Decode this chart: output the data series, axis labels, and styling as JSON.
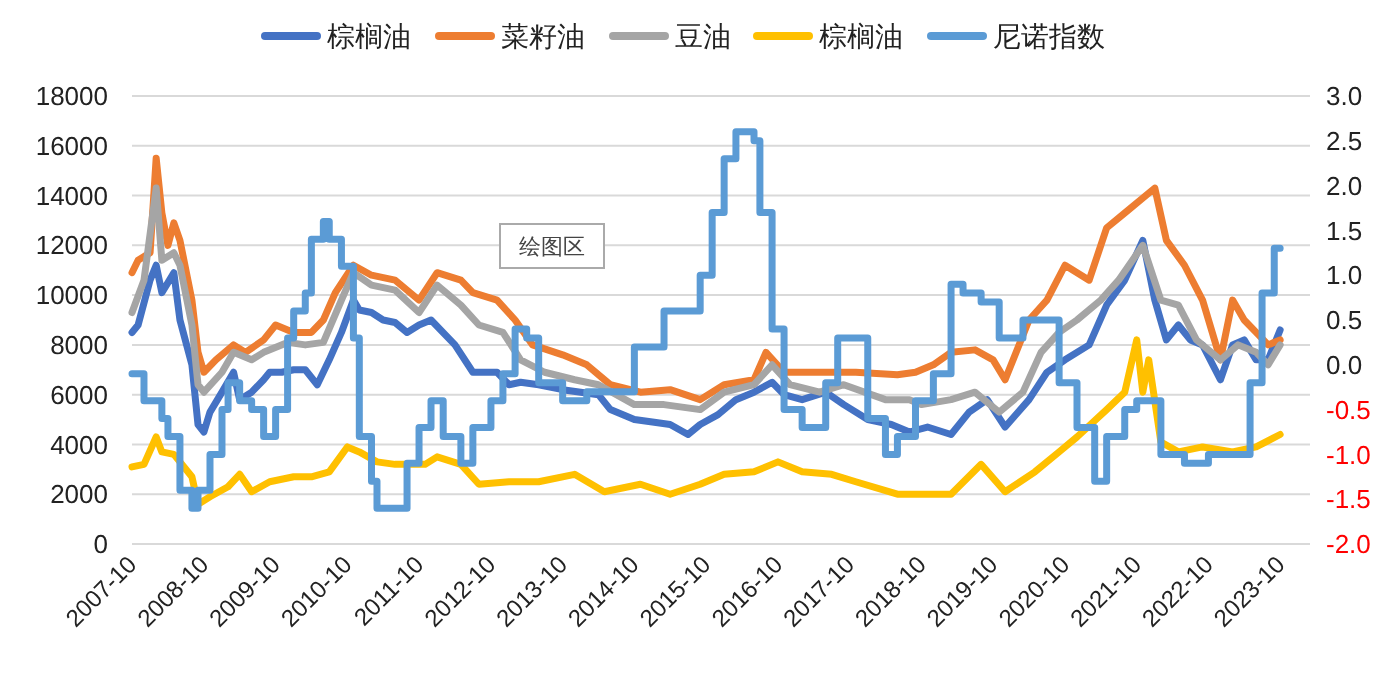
{
  "chart_data": {
    "type": "line",
    "legend": "top",
    "grid": "y",
    "annotations": [
      "绘图区"
    ],
    "xlim": [
      "2007-10",
      "2024-03"
    ],
    "xticks": [
      "2007-10",
      "2008-10",
      "2009-10",
      "2010-10",
      "2011-10",
      "2012-10",
      "2013-10",
      "2014-10",
      "2015-10",
      "2016-10",
      "2017-10",
      "2018-10",
      "2019-10",
      "2020-10",
      "2021-10",
      "2022-10",
      "2023-10"
    ],
    "ylim": [
      0,
      18000
    ],
    "yticks": [
      0,
      2000,
      4000,
      6000,
      8000,
      10000,
      12000,
      14000,
      16000,
      18000
    ],
    "y2lim": [
      -2,
      3
    ],
    "y2ticks": [
      {
        "value": -2,
        "label": "-2.0"
      },
      {
        "value": -1.5,
        "label": "-1.5"
      },
      {
        "value": -1,
        "label": "-1.0"
      },
      {
        "value": -0.5,
        "label": "-0.5"
      },
      {
        "value": 0,
        "label": "0.0"
      },
      {
        "value": 0.5,
        "label": "0.5"
      },
      {
        "value": 1,
        "label": "1.0"
      },
      {
        "value": 1.5,
        "label": "1.5"
      },
      {
        "value": 2,
        "label": "2.0"
      },
      {
        "value": 2.5,
        "label": "2.5"
      },
      {
        "value": 3,
        "label": "3.0"
      }
    ],
    "series": [
      {
        "name": "棕榈油",
        "color": "#4472c4",
        "x": [
          "2007-10",
          "2007-11",
          "2008-01",
          "2008-02",
          "2008-03",
          "2008-04",
          "2008-05",
          "2008-06",
          "2008-08",
          "2008-09",
          "2008-10",
          "2008-11",
          "2009-01",
          "2009-03",
          "2009-04",
          "2009-06",
          "2009-08",
          "2009-09",
          "2009-11",
          "2010-01",
          "2010-03",
          "2010-05",
          "2010-07",
          "2010-09",
          "2010-11",
          "2010-12",
          "2011-02",
          "2011-04",
          "2011-06",
          "2011-08",
          "2011-10",
          "2011-12",
          "2012-04",
          "2012-07",
          "2012-11",
          "2013-01",
          "2013-03",
          "2013-06",
          "2013-10",
          "2014-01",
          "2014-04",
          "2014-06",
          "2014-10",
          "2015-01",
          "2015-04",
          "2015-07",
          "2015-09",
          "2015-12",
          "2016-03",
          "2016-06",
          "2016-09",
          "2016-11",
          "2017-02",
          "2017-06",
          "2017-09",
          "2018-01",
          "2018-05",
          "2018-08",
          "2018-11",
          "2019-03",
          "2019-06",
          "2019-09",
          "2019-12",
          "2020-04",
          "2020-07",
          "2020-10",
          "2021-02",
          "2021-05",
          "2021-08",
          "2021-11",
          "2022-01",
          "2022-03",
          "2022-05",
          "2022-07",
          "2022-09",
          "2022-12",
          "2023-02",
          "2023-04",
          "2023-06",
          "2023-08",
          "2023-10"
        ],
        "values": [
          8500,
          8800,
          10600,
          11200,
          10100,
          10500,
          10900,
          9000,
          7200,
          4800,
          4500,
          5300,
          6100,
          6900,
          5800,
          6100,
          6600,
          6900,
          6900,
          7000,
          7000,
          6400,
          7400,
          8500,
          9800,
          9400,
          9300,
          9000,
          8900,
          8500,
          8800,
          9000,
          8000,
          6900,
          6900,
          6400,
          6500,
          6400,
          6200,
          6100,
          6000,
          5400,
          5000,
          4900,
          4800,
          4400,
          4800,
          5200,
          5800,
          6100,
          6500,
          6000,
          5800,
          6100,
          5600,
          5000,
          4800,
          4500,
          4700,
          4400,
          5300,
          5800,
          4700,
          5800,
          6900,
          7400,
          8000,
          9600,
          10600,
          12200,
          9800,
          8200,
          8800,
          8200,
          8000,
          6600,
          8000,
          8200,
          7400,
          7400,
          8600
        ]
      },
      {
        "name": "菜籽油",
        "color": "#ed7d31",
        "x": [
          "2007-10",
          "2007-11",
          "2008-01",
          "2008-02",
          "2008-03",
          "2008-04",
          "2008-05",
          "2008-06",
          "2008-08",
          "2008-09",
          "2008-10",
          "2008-12",
          "2009-03",
          "2009-05",
          "2009-08",
          "2009-10",
          "2010-01",
          "2010-04",
          "2010-06",
          "2010-08",
          "2010-11",
          "2011-02",
          "2011-06",
          "2011-10",
          "2012-01",
          "2012-05",
          "2012-07",
          "2012-11",
          "2013-02",
          "2013-05",
          "2013-10",
          "2014-02",
          "2014-06",
          "2014-11",
          "2015-04",
          "2015-09",
          "2016-01",
          "2016-06",
          "2016-08",
          "2016-11",
          "2017-03",
          "2017-07",
          "2017-11",
          "2018-06",
          "2018-09",
          "2018-12",
          "2019-03",
          "2019-07",
          "2019-10",
          "2019-12",
          "2020-04",
          "2020-07",
          "2020-10",
          "2021-02",
          "2021-05",
          "2021-08",
          "2022-01",
          "2022-03",
          "2022-06",
          "2022-09",
          "2022-12",
          "2023-02",
          "2023-04",
          "2023-06",
          "2023-08",
          "2023-10"
        ],
        "values": [
          10900,
          11400,
          11700,
          15500,
          13300,
          12000,
          12900,
          12200,
          9800,
          7700,
          6900,
          7400,
          8000,
          7700,
          8200,
          8800,
          8500,
          8500,
          9000,
          10100,
          11200,
          10800,
          10600,
          9800,
          10900,
          10600,
          10100,
          9800,
          9000,
          8000,
          7600,
          7200,
          6400,
          6100,
          6200,
          5800,
          6400,
          6600,
          7700,
          6900,
          6900,
          6900,
          6900,
          6800,
          6900,
          7200,
          7700,
          7800,
          7400,
          6600,
          9000,
          9800,
          11200,
          10600,
          12700,
          13300,
          14300,
          12200,
          11200,
          9800,
          7400,
          9800,
          9000,
          8500,
          8000,
          8200
        ]
      },
      {
        "name": "豆油",
        "color": "#a5a5a5",
        "x": [
          "2007-10",
          "2007-12",
          "2008-02",
          "2008-03",
          "2008-05",
          "2008-06",
          "2008-08",
          "2008-09",
          "2008-10",
          "2009-01",
          "2009-03",
          "2009-06",
          "2009-08",
          "2009-12",
          "2010-03",
          "2010-06",
          "2010-09",
          "2010-11",
          "2011-02",
          "2011-06",
          "2011-10",
          "2012-01",
          "2012-05",
          "2012-08",
          "2012-12",
          "2013-03",
          "2013-07",
          "2013-12",
          "2014-04",
          "2014-10",
          "2015-03",
          "2015-09",
          "2016-01",
          "2016-06",
          "2016-09",
          "2016-12",
          "2017-05",
          "2017-09",
          "2018-04",
          "2018-08",
          "2018-10",
          "2019-03",
          "2019-07",
          "2019-11",
          "2020-03",
          "2020-06",
          "2020-09",
          "2020-12",
          "2021-04",
          "2021-07",
          "2021-11",
          "2022-02",
          "2022-05",
          "2022-08",
          "2022-12",
          "2023-03",
          "2023-06",
          "2023-08",
          "2023-10"
        ],
        "values": [
          9300,
          10600,
          14300,
          11400,
          11700,
          11200,
          8800,
          6400,
          6100,
          6900,
          7700,
          7400,
          7700,
          8100,
          8000,
          8100,
          9800,
          10900,
          10400,
          10200,
          9300,
          10400,
          9600,
          8800,
          8500,
          7400,
          6900,
          6600,
          6400,
          5600,
          5600,
          5400,
          6100,
          6400,
          7200,
          6400,
          6100,
          6400,
          5800,
          5800,
          5600,
          5800,
          6100,
          5300,
          6100,
          7700,
          8500,
          9000,
          9800,
          10600,
          12000,
          9800,
          9600,
          8200,
          7400,
          8000,
          7700,
          7200,
          8000
        ]
      },
      {
        "name": "棕榈油",
        "color": "#ffc000",
        "x": [
          "2007-10",
          "2007-12",
          "2008-02",
          "2008-03",
          "2008-05",
          "2008-08",
          "2008-09",
          "2008-11",
          "2009-02",
          "2009-04",
          "2009-06",
          "2009-09",
          "2010-01",
          "2010-04",
          "2010-07",
          "2010-10",
          "2010-12",
          "2011-03",
          "2011-06",
          "2011-11",
          "2012-01",
          "2012-05",
          "2012-08",
          "2013-01",
          "2013-06",
          "2013-12",
          "2014-05",
          "2014-11",
          "2015-04",
          "2015-09",
          "2016-01",
          "2016-06",
          "2016-10",
          "2017-02",
          "2017-07",
          "2017-11",
          "2018-06",
          "2018-10",
          "2019-03",
          "2019-08",
          "2019-12",
          "2020-05",
          "2020-09",
          "2020-12",
          "2021-05",
          "2021-08",
          "2021-10",
          "2021-11",
          "2021-12",
          "2022-02",
          "2022-05",
          "2022-09",
          "2023-02",
          "2023-06",
          "2023-10"
        ],
        "values": [
          3100,
          3200,
          4300,
          3700,
          3600,
          2700,
          1600,
          1900,
          2300,
          2800,
          2100,
          2500,
          2700,
          2700,
          2900,
          3900,
          3700,
          3300,
          3200,
          3200,
          3500,
          3200,
          2400,
          2500,
          2500,
          2800,
          2100,
          2400,
          2000,
          2400,
          2800,
          2900,
          3300,
          2900,
          2800,
          2500,
          2000,
          2000,
          2000,
          3200,
          2100,
          2900,
          3700,
          4300,
          5400,
          6100,
          8200,
          6100,
          7400,
          4100,
          3700,
          3900,
          3700,
          3900,
          4400
        ]
      },
      {
        "name": "尼诺指数",
        "type": "step",
        "axis": "y2",
        "color": "#5b9bd5",
        "x": [
          "2007-10",
          "2007-12",
          "2008-03",
          "2008-04",
          "2008-06",
          "2008-08",
          "2008-09",
          "2008-11",
          "2009-01",
          "2009-02",
          "2009-04",
          "2009-06",
          "2009-08",
          "2009-10",
          "2009-12",
          "2010-01",
          "2010-03",
          "2010-04",
          "2010-06",
          "2010-07",
          "2010-09",
          "2010-11",
          "2010-12",
          "2011-02",
          "2011-03",
          "2011-06",
          "2011-08",
          "2011-10",
          "2011-12",
          "2012-02",
          "2012-05",
          "2012-07",
          "2012-10",
          "2012-12",
          "2013-02",
          "2013-04",
          "2013-06",
          "2013-10",
          "2014-02",
          "2014-06",
          "2014-10",
          "2015-01",
          "2015-03",
          "2015-06",
          "2015-09",
          "2015-11",
          "2016-01",
          "2016-03",
          "2016-06",
          "2016-07",
          "2016-09",
          "2016-11",
          "2017-02",
          "2017-06",
          "2017-08",
          "2017-11",
          "2018-01",
          "2018-04",
          "2018-06",
          "2018-09",
          "2018-12",
          "2019-03",
          "2019-05",
          "2019-08",
          "2019-11",
          "2020-03",
          "2020-06",
          "2020-09",
          "2020-12",
          "2021-03",
          "2021-05",
          "2021-08",
          "2021-10",
          "2022-02",
          "2022-06",
          "2022-10",
          "2023-02",
          "2023-05",
          "2023-07",
          "2023-09",
          "2023-10"
        ],
        "values": [
          -0.1,
          -0.4,
          -0.6,
          -0.8,
          -1.4,
          -1.6,
          -1.4,
          -1.0,
          -0.5,
          -0.2,
          -0.4,
          -0.5,
          -0.8,
          -0.5,
          0.3,
          0.6,
          0.8,
          1.4,
          1.6,
          1.4,
          1.1,
          0.3,
          -0.8,
          -1.3,
          -1.6,
          -1.6,
          -1.1,
          -0.7,
          -0.4,
          -0.8,
          -1.1,
          -0.7,
          -0.4,
          -0.1,
          0.4,
          0.3,
          -0.2,
          -0.4,
          -0.3,
          -0.3,
          0.2,
          0.2,
          0.6,
          0.6,
          1.0,
          1.7,
          2.3,
          2.6,
          2.5,
          1.7,
          0.4,
          -0.5,
          -0.7,
          -0.2,
          0.3,
          0.3,
          -0.6,
          -1.0,
          -0.8,
          -0.4,
          -0.1,
          0.9,
          0.8,
          0.7,
          0.3,
          0.5,
          0.5,
          -0.2,
          -0.7,
          -1.3,
          -0.8,
          -0.5,
          -0.4,
          -1.0,
          -1.1,
          -1.0,
          -1.0,
          -0.2,
          0.8,
          1.3,
          1.3
        ]
      }
    ]
  }
}
